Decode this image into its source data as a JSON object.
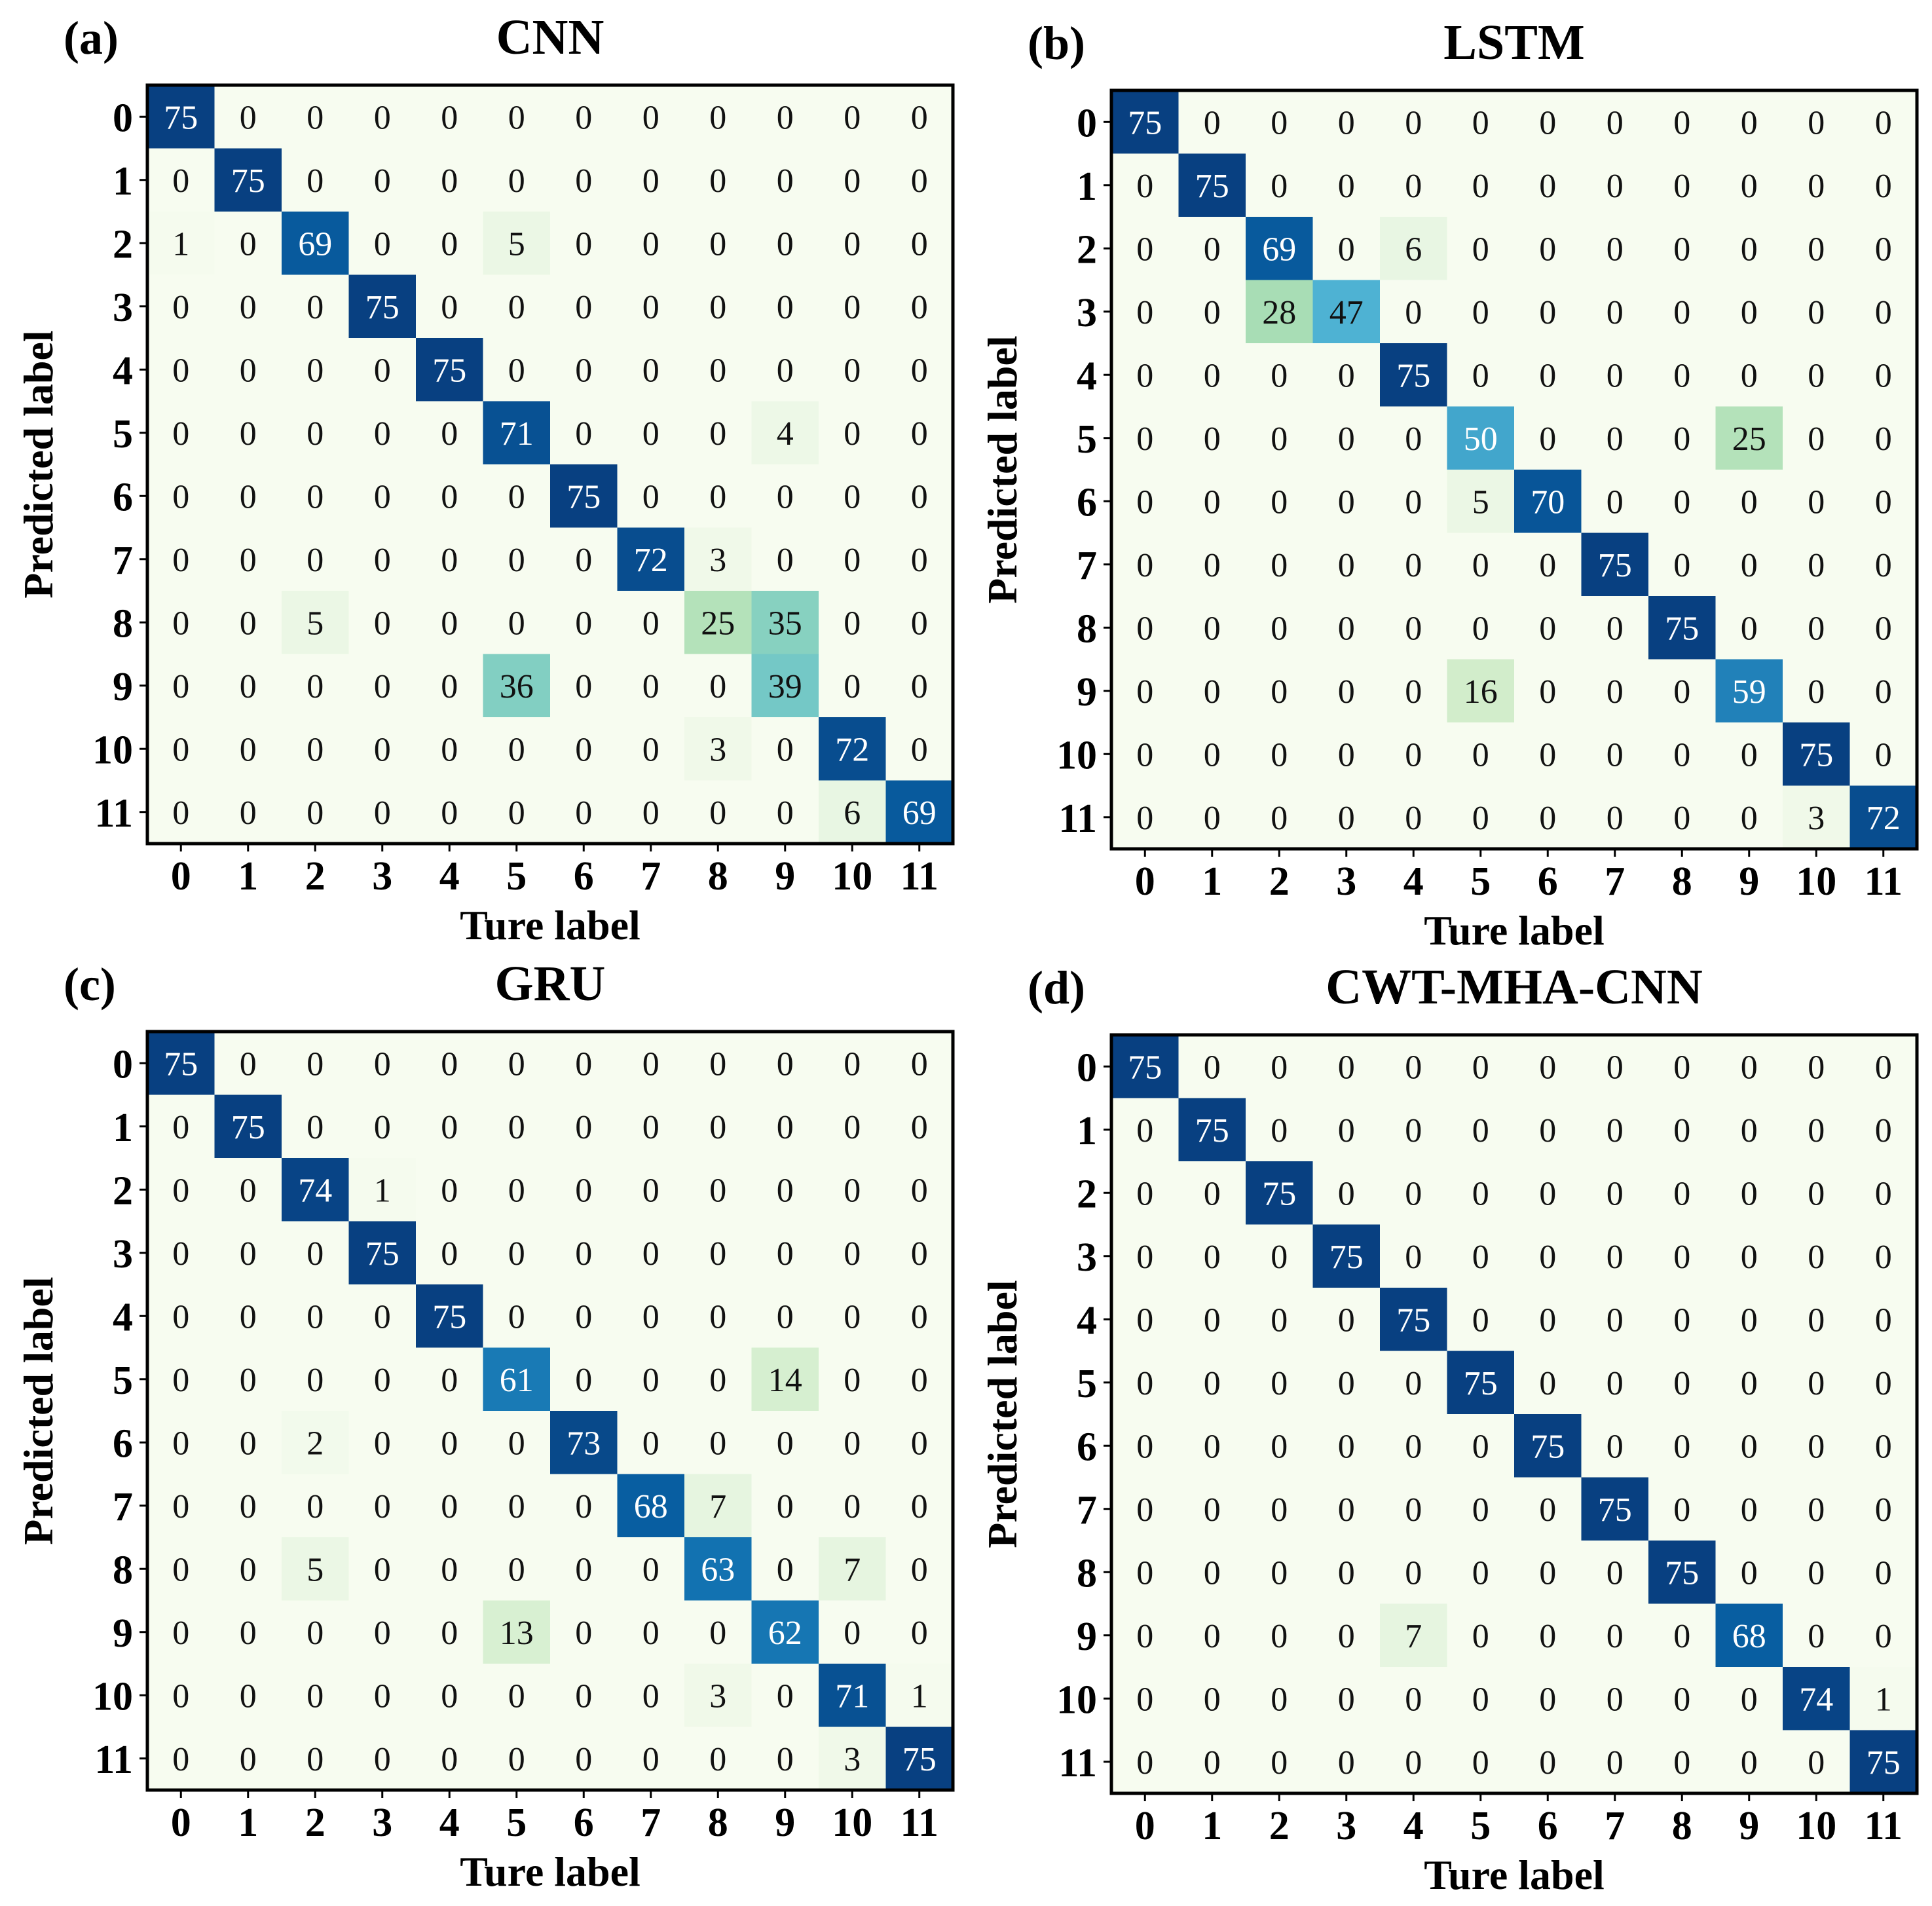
{
  "figure": {
    "panels": [
      "(a)",
      "(b)",
      "(c)",
      "(d)"
    ]
  },
  "chart_data": [
    {
      "type": "heatmap",
      "panel_label": "(a)",
      "title": "CNN",
      "xlabel": "Ture label",
      "ylabel": "Predicted label",
      "x_ticks": [
        "0",
        "1",
        "2",
        "3",
        "4",
        "5",
        "6",
        "7",
        "8",
        "9",
        "10",
        "11"
      ],
      "y_ticks": [
        "0",
        "1",
        "2",
        "3",
        "4",
        "5",
        "6",
        "7",
        "8",
        "9",
        "10",
        "11"
      ],
      "vmax": 75,
      "colormap": [
        "#f7fcf0",
        "#e0f3db",
        "#ccebc5",
        "#a8ddb5",
        "#7bccc4",
        "#4eb3d3",
        "#2b8cbe",
        "#0868ac",
        "#084081"
      ],
      "matrix": [
        [
          75,
          0,
          0,
          0,
          0,
          0,
          0,
          0,
          0,
          0,
          0,
          0
        ],
        [
          0,
          75,
          0,
          0,
          0,
          0,
          0,
          0,
          0,
          0,
          0,
          0
        ],
        [
          1,
          0,
          69,
          0,
          0,
          5,
          0,
          0,
          0,
          0,
          0,
          0
        ],
        [
          0,
          0,
          0,
          75,
          0,
          0,
          0,
          0,
          0,
          0,
          0,
          0
        ],
        [
          0,
          0,
          0,
          0,
          75,
          0,
          0,
          0,
          0,
          0,
          0,
          0
        ],
        [
          0,
          0,
          0,
          0,
          0,
          71,
          0,
          0,
          0,
          4,
          0,
          0
        ],
        [
          0,
          0,
          0,
          0,
          0,
          0,
          75,
          0,
          0,
          0,
          0,
          0
        ],
        [
          0,
          0,
          0,
          0,
          0,
          0,
          0,
          72,
          3,
          0,
          0,
          0
        ],
        [
          0,
          0,
          5,
          0,
          0,
          0,
          0,
          0,
          25,
          35,
          0,
          0
        ],
        [
          0,
          0,
          0,
          0,
          0,
          36,
          0,
          0,
          0,
          39,
          0,
          0
        ],
        [
          0,
          0,
          0,
          0,
          0,
          0,
          0,
          0,
          3,
          0,
          72,
          0
        ],
        [
          0,
          0,
          0,
          0,
          0,
          0,
          0,
          0,
          0,
          0,
          6,
          69
        ]
      ]
    },
    {
      "type": "heatmap",
      "panel_label": "(b)",
      "title": "LSTM",
      "xlabel": "Ture label",
      "ylabel": "Predicted label",
      "x_ticks": [
        "0",
        "1",
        "2",
        "3",
        "4",
        "5",
        "6",
        "7",
        "8",
        "9",
        "10",
        "11"
      ],
      "y_ticks": [
        "0",
        "1",
        "2",
        "3",
        "4",
        "5",
        "6",
        "7",
        "8",
        "9",
        "10",
        "11"
      ],
      "vmax": 75,
      "colormap": [
        "#f7fcf0",
        "#e0f3db",
        "#ccebc5",
        "#a8ddb5",
        "#7bccc4",
        "#4eb3d3",
        "#2b8cbe",
        "#0868ac",
        "#084081"
      ],
      "matrix": [
        [
          75,
          0,
          0,
          0,
          0,
          0,
          0,
          0,
          0,
          0,
          0,
          0
        ],
        [
          0,
          75,
          0,
          0,
          0,
          0,
          0,
          0,
          0,
          0,
          0,
          0
        ],
        [
          0,
          0,
          69,
          0,
          6,
          0,
          0,
          0,
          0,
          0,
          0,
          0
        ],
        [
          0,
          0,
          28,
          47,
          0,
          0,
          0,
          0,
          0,
          0,
          0,
          0
        ],
        [
          0,
          0,
          0,
          0,
          75,
          0,
          0,
          0,
          0,
          0,
          0,
          0
        ],
        [
          0,
          0,
          0,
          0,
          0,
          50,
          0,
          0,
          0,
          25,
          0,
          0
        ],
        [
          0,
          0,
          0,
          0,
          0,
          5,
          70,
          0,
          0,
          0,
          0,
          0
        ],
        [
          0,
          0,
          0,
          0,
          0,
          0,
          0,
          75,
          0,
          0,
          0,
          0
        ],
        [
          0,
          0,
          0,
          0,
          0,
          0,
          0,
          0,
          75,
          0,
          0,
          0
        ],
        [
          0,
          0,
          0,
          0,
          0,
          16,
          0,
          0,
          0,
          59,
          0,
          0
        ],
        [
          0,
          0,
          0,
          0,
          0,
          0,
          0,
          0,
          0,
          0,
          75,
          0
        ],
        [
          0,
          0,
          0,
          0,
          0,
          0,
          0,
          0,
          0,
          0,
          3,
          72
        ]
      ]
    },
    {
      "type": "heatmap",
      "panel_label": "(c)",
      "title": "GRU",
      "xlabel": "Ture label",
      "ylabel": "Predicted label",
      "x_ticks": [
        "0",
        "1",
        "2",
        "3",
        "4",
        "5",
        "6",
        "7",
        "8",
        "9",
        "10",
        "11"
      ],
      "y_ticks": [
        "0",
        "1",
        "2",
        "3",
        "4",
        "5",
        "6",
        "7",
        "8",
        "9",
        "10",
        "11"
      ],
      "vmax": 75,
      "colormap": [
        "#f7fcf0",
        "#e0f3db",
        "#ccebc5",
        "#a8ddb5",
        "#7bccc4",
        "#4eb3d3",
        "#2b8cbe",
        "#0868ac",
        "#084081"
      ],
      "matrix": [
        [
          75,
          0,
          0,
          0,
          0,
          0,
          0,
          0,
          0,
          0,
          0,
          0
        ],
        [
          0,
          75,
          0,
          0,
          0,
          0,
          0,
          0,
          0,
          0,
          0,
          0
        ],
        [
          0,
          0,
          74,
          1,
          0,
          0,
          0,
          0,
          0,
          0,
          0,
          0
        ],
        [
          0,
          0,
          0,
          75,
          0,
          0,
          0,
          0,
          0,
          0,
          0,
          0
        ],
        [
          0,
          0,
          0,
          0,
          75,
          0,
          0,
          0,
          0,
          0,
          0,
          0
        ],
        [
          0,
          0,
          0,
          0,
          0,
          61,
          0,
          0,
          0,
          14,
          0,
          0
        ],
        [
          0,
          0,
          2,
          0,
          0,
          0,
          73,
          0,
          0,
          0,
          0,
          0
        ],
        [
          0,
          0,
          0,
          0,
          0,
          0,
          0,
          68,
          7,
          0,
          0,
          0
        ],
        [
          0,
          0,
          5,
          0,
          0,
          0,
          0,
          0,
          63,
          0,
          7,
          0
        ],
        [
          0,
          0,
          0,
          0,
          0,
          13,
          0,
          0,
          0,
          62,
          0,
          0
        ],
        [
          0,
          0,
          0,
          0,
          0,
          0,
          0,
          0,
          3,
          0,
          71,
          1
        ],
        [
          0,
          0,
          0,
          0,
          0,
          0,
          0,
          0,
          0,
          0,
          3,
          75
        ]
      ]
    },
    {
      "type": "heatmap",
      "panel_label": "(d)",
      "title": "CWT-MHA-CNN",
      "xlabel": "Ture label",
      "ylabel": "Predicted label",
      "x_ticks": [
        "0",
        "1",
        "2",
        "3",
        "4",
        "5",
        "6",
        "7",
        "8",
        "9",
        "10",
        "11"
      ],
      "y_ticks": [
        "0",
        "1",
        "2",
        "3",
        "4",
        "5",
        "6",
        "7",
        "8",
        "9",
        "10",
        "11"
      ],
      "vmax": 75,
      "colormap": [
        "#f7fcf0",
        "#e0f3db",
        "#ccebc5",
        "#a8ddb5",
        "#7bccc4",
        "#4eb3d3",
        "#2b8cbe",
        "#0868ac",
        "#084081"
      ],
      "matrix": [
        [
          75,
          0,
          0,
          0,
          0,
          0,
          0,
          0,
          0,
          0,
          0,
          0
        ],
        [
          0,
          75,
          0,
          0,
          0,
          0,
          0,
          0,
          0,
          0,
          0,
          0
        ],
        [
          0,
          0,
          75,
          0,
          0,
          0,
          0,
          0,
          0,
          0,
          0,
          0
        ],
        [
          0,
          0,
          0,
          75,
          0,
          0,
          0,
          0,
          0,
          0,
          0,
          0
        ],
        [
          0,
          0,
          0,
          0,
          75,
          0,
          0,
          0,
          0,
          0,
          0,
          0
        ],
        [
          0,
          0,
          0,
          0,
          0,
          75,
          0,
          0,
          0,
          0,
          0,
          0
        ],
        [
          0,
          0,
          0,
          0,
          0,
          0,
          75,
          0,
          0,
          0,
          0,
          0
        ],
        [
          0,
          0,
          0,
          0,
          0,
          0,
          0,
          75,
          0,
          0,
          0,
          0
        ],
        [
          0,
          0,
          0,
          0,
          0,
          0,
          0,
          0,
          75,
          0,
          0,
          0
        ],
        [
          0,
          0,
          0,
          0,
          7,
          0,
          0,
          0,
          0,
          68,
          0,
          0
        ],
        [
          0,
          0,
          0,
          0,
          0,
          0,
          0,
          0,
          0,
          0,
          74,
          1
        ],
        [
          0,
          0,
          0,
          0,
          0,
          0,
          0,
          0,
          0,
          0,
          0,
          75
        ]
      ]
    }
  ]
}
